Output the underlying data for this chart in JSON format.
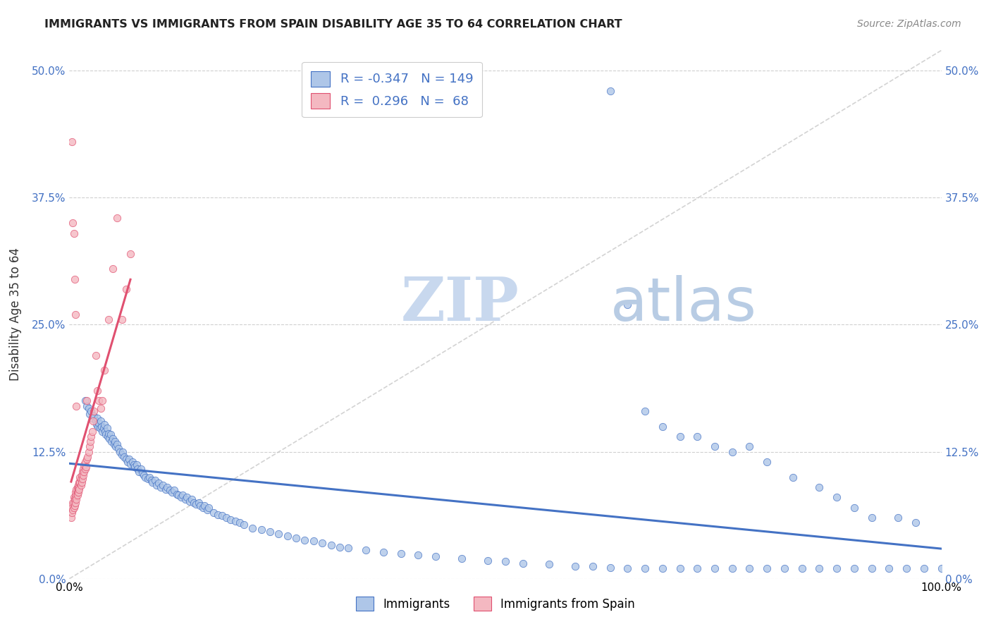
{
  "title": "IMMIGRANTS VS IMMIGRANTS FROM SPAIN DISABILITY AGE 35 TO 64 CORRELATION CHART",
  "source": "Source: ZipAtlas.com",
  "ylabel": "Disability Age 35 to 64",
  "ytick_labels": [
    "0.0%",
    "12.5%",
    "25.0%",
    "37.5%",
    "50.0%"
  ],
  "ytick_values": [
    0.0,
    0.125,
    0.25,
    0.375,
    0.5
  ],
  "legend_immigrants_label": "Immigrants",
  "legend_spain_label": "Immigrants from Spain",
  "legend_r_immigrants": "R = -0.347",
  "legend_n_immigrants": "N = 149",
  "legend_r_spain": "R =  0.296",
  "legend_n_spain": "N =  68",
  "color_immigrants": "#aec6e8",
  "color_spain": "#f4b8c1",
  "color_trendline_immigrants": "#4472c4",
  "color_trendline_spain": "#e05070",
  "color_trendline_dashed": "#c8c8c8",
  "color_legend_text": "#4472c4",
  "watermark_zip": "ZIP",
  "watermark_atlas": "atlas",
  "watermark_color_zip": "#c8d8ee",
  "watermark_color_atlas": "#b8cce4",
  "background_color": "#ffffff",
  "xlim": [
    0.0,
    1.0
  ],
  "ylim": [
    0.0,
    0.52
  ],
  "immigrants_x": [
    0.018,
    0.02,
    0.022,
    0.023,
    0.025,
    0.026,
    0.028,
    0.03,
    0.031,
    0.032,
    0.033,
    0.034,
    0.035,
    0.036,
    0.037,
    0.038,
    0.039,
    0.04,
    0.041,
    0.042,
    0.043,
    0.044,
    0.045,
    0.046,
    0.047,
    0.048,
    0.05,
    0.051,
    0.052,
    0.053,
    0.055,
    0.056,
    0.058,
    0.06,
    0.061,
    0.063,
    0.065,
    0.067,
    0.068,
    0.07,
    0.072,
    0.074,
    0.075,
    0.077,
    0.078,
    0.08,
    0.082,
    0.084,
    0.085,
    0.087,
    0.09,
    0.092,
    0.094,
    0.095,
    0.098,
    0.1,
    0.102,
    0.105,
    0.107,
    0.11,
    0.112,
    0.115,
    0.118,
    0.12,
    0.123,
    0.125,
    0.128,
    0.13,
    0.133,
    0.135,
    0.138,
    0.14,
    0.143,
    0.145,
    0.148,
    0.15,
    0.153,
    0.155,
    0.158,
    0.16,
    0.165,
    0.17,
    0.175,
    0.18,
    0.185,
    0.19,
    0.195,
    0.2,
    0.21,
    0.22,
    0.23,
    0.24,
    0.25,
    0.26,
    0.27,
    0.28,
    0.29,
    0.3,
    0.31,
    0.32,
    0.34,
    0.36,
    0.38,
    0.4,
    0.42,
    0.45,
    0.48,
    0.5,
    0.52,
    0.55,
    0.58,
    0.6,
    0.62,
    0.64,
    0.66,
    0.68,
    0.7,
    0.72,
    0.74,
    0.76,
    0.78,
    0.8,
    0.82,
    0.84,
    0.86,
    0.88,
    0.9,
    0.92,
    0.94,
    0.96,
    0.98,
    1.0,
    0.62,
    0.64,
    0.66,
    0.68,
    0.7,
    0.72,
    0.74,
    0.76,
    0.78,
    0.8,
    0.83,
    0.86,
    0.88,
    0.9,
    0.92,
    0.95,
    0.97
  ],
  "immigrants_y": [
    0.175,
    0.17,
    0.168,
    0.162,
    0.165,
    0.158,
    0.16,
    0.155,
    0.152,
    0.158,
    0.15,
    0.153,
    0.148,
    0.155,
    0.15,
    0.145,
    0.148,
    0.152,
    0.145,
    0.142,
    0.148,
    0.14,
    0.143,
    0.138,
    0.142,
    0.135,
    0.138,
    0.132,
    0.135,
    0.13,
    0.132,
    0.128,
    0.125,
    0.122,
    0.125,
    0.12,
    0.118,
    0.115,
    0.118,
    0.113,
    0.115,
    0.112,
    0.11,
    0.112,
    0.108,
    0.105,
    0.108,
    0.104,
    0.102,
    0.1,
    0.098,
    0.1,
    0.097,
    0.095,
    0.097,
    0.092,
    0.094,
    0.09,
    0.092,
    0.088,
    0.09,
    0.087,
    0.085,
    0.087,
    0.083,
    0.082,
    0.08,
    0.082,
    0.078,
    0.08,
    0.076,
    0.078,
    0.075,
    0.073,
    0.075,
    0.072,
    0.07,
    0.072,
    0.068,
    0.07,
    0.065,
    0.063,
    0.062,
    0.06,
    0.058,
    0.057,
    0.055,
    0.053,
    0.05,
    0.048,
    0.046,
    0.044,
    0.042,
    0.04,
    0.038,
    0.037,
    0.035,
    0.033,
    0.031,
    0.03,
    0.028,
    0.026,
    0.025,
    0.023,
    0.022,
    0.02,
    0.018,
    0.017,
    0.015,
    0.014,
    0.012,
    0.012,
    0.011,
    0.01,
    0.01,
    0.01,
    0.01,
    0.01,
    0.01,
    0.01,
    0.01,
    0.01,
    0.01,
    0.01,
    0.01,
    0.01,
    0.01,
    0.01,
    0.01,
    0.01,
    0.01,
    0.01,
    0.48,
    0.27,
    0.165,
    0.15,
    0.14,
    0.14,
    0.13,
    0.125,
    0.13,
    0.115,
    0.1,
    0.09,
    0.08,
    0.07,
    0.06,
    0.06,
    0.055
  ],
  "spain_x": [
    0.002,
    0.003,
    0.003,
    0.004,
    0.004,
    0.005,
    0.005,
    0.005,
    0.006,
    0.006,
    0.007,
    0.007,
    0.007,
    0.008,
    0.008,
    0.008,
    0.009,
    0.009,
    0.009,
    0.01,
    0.01,
    0.01,
    0.011,
    0.011,
    0.011,
    0.012,
    0.012,
    0.013,
    0.013,
    0.014,
    0.014,
    0.015,
    0.015,
    0.016,
    0.016,
    0.017,
    0.017,
    0.018,
    0.018,
    0.019,
    0.02,
    0.02,
    0.021,
    0.022,
    0.023,
    0.024,
    0.025,
    0.026,
    0.027,
    0.028,
    0.03,
    0.032,
    0.034,
    0.036,
    0.038,
    0.04,
    0.045,
    0.05,
    0.055,
    0.06,
    0.065,
    0.07,
    0.003,
    0.004,
    0.005,
    0.006,
    0.007,
    0.008
  ],
  "spain_y": [
    0.06,
    0.065,
    0.07,
    0.068,
    0.075,
    0.07,
    0.075,
    0.08,
    0.072,
    0.078,
    0.08,
    0.085,
    0.075,
    0.082,
    0.088,
    0.078,
    0.085,
    0.09,
    0.082,
    0.088,
    0.092,
    0.085,
    0.09,
    0.095,
    0.088,
    0.095,
    0.1,
    0.092,
    0.098,
    0.095,
    0.102,
    0.098,
    0.105,
    0.102,
    0.108,
    0.105,
    0.112,
    0.108,
    0.115,
    0.11,
    0.118,
    0.175,
    0.12,
    0.125,
    0.13,
    0.135,
    0.14,
    0.145,
    0.155,
    0.165,
    0.22,
    0.185,
    0.175,
    0.168,
    0.175,
    0.205,
    0.255,
    0.305,
    0.355,
    0.255,
    0.285,
    0.32,
    0.43,
    0.35,
    0.34,
    0.295,
    0.26,
    0.17
  ]
}
